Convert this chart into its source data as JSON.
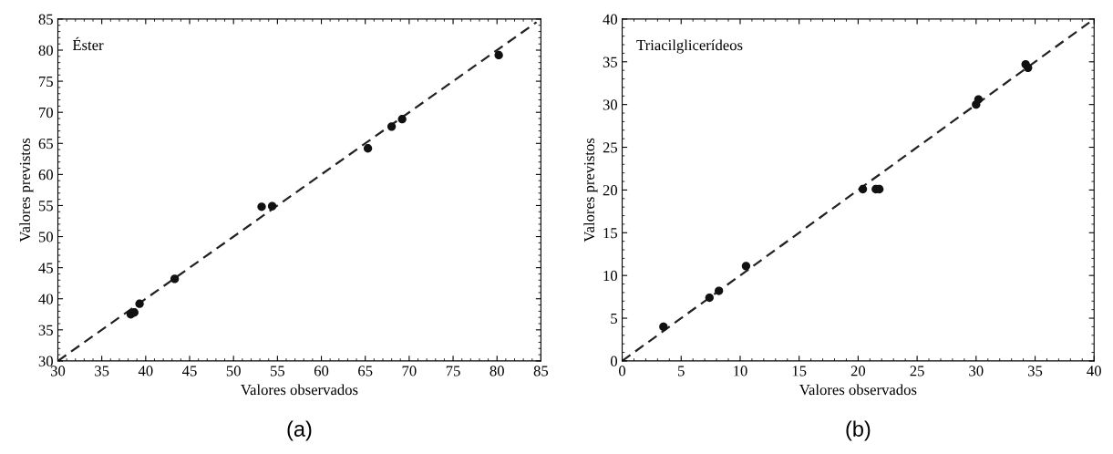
{
  "chart_data": [
    {
      "type": "scatter",
      "xlabel": "Valores observados",
      "ylabel": "Valores previstos",
      "annotations": [
        "Éster",
        "(a)"
      ],
      "marker": "circle",
      "grid": false,
      "legend": false,
      "xlim": [
        30,
        85
      ],
      "ylim": [
        30,
        85
      ],
      "xticks": [
        30,
        35,
        40,
        45,
        50,
        55,
        60,
        65,
        70,
        75,
        80,
        85
      ],
      "yticks": [
        30,
        35,
        40,
        45,
        50,
        55,
        60,
        65,
        70,
        75,
        80,
        85
      ],
      "series": [
        {
          "color": "#111111",
          "x": [
            38.3,
            38.7,
            39.3,
            43.3,
            53.2,
            54.4,
            65.3,
            68.0,
            69.2,
            80.2
          ],
          "values": [
            37.5,
            37.8,
            39.2,
            43.2,
            54.8,
            54.9,
            64.2,
            67.7,
            68.9,
            79.2
          ]
        },
        {
          "type": "line",
          "color": "#222222",
          "line_style": "dashed",
          "marker": "none",
          "x": [
            30,
            84.5
          ],
          "values": [
            30,
            84.5
          ]
        }
      ]
    },
    {
      "type": "scatter",
      "xlabel": "Valores observados",
      "ylabel": "Valores previstos",
      "annotations": [
        "Triacilglicerídeos",
        "(b)"
      ],
      "marker": "circle",
      "grid": false,
      "legend": false,
      "xlim": [
        0,
        40
      ],
      "ylim": [
        0,
        40
      ],
      "xticks": [
        0,
        5,
        10,
        15,
        20,
        25,
        30,
        35,
        40
      ],
      "yticks": [
        0,
        5,
        10,
        15,
        20,
        25,
        30,
        35,
        40
      ],
      "series": [
        {
          "color": "#111111",
          "x": [
            3.5,
            7.4,
            8.2,
            10.5,
            20.4,
            21.5,
            21.8,
            30.0,
            30.2,
            34.2,
            34.4
          ],
          "values": [
            4.0,
            7.4,
            8.2,
            11.1,
            20.1,
            20.1,
            20.1,
            30.0,
            30.6,
            34.7,
            34.3
          ]
        },
        {
          "type": "line",
          "color": "#222222",
          "line_style": "dashed",
          "marker": "none",
          "x": [
            0,
            39.6
          ],
          "values": [
            0,
            39.6
          ]
        }
      ]
    }
  ]
}
